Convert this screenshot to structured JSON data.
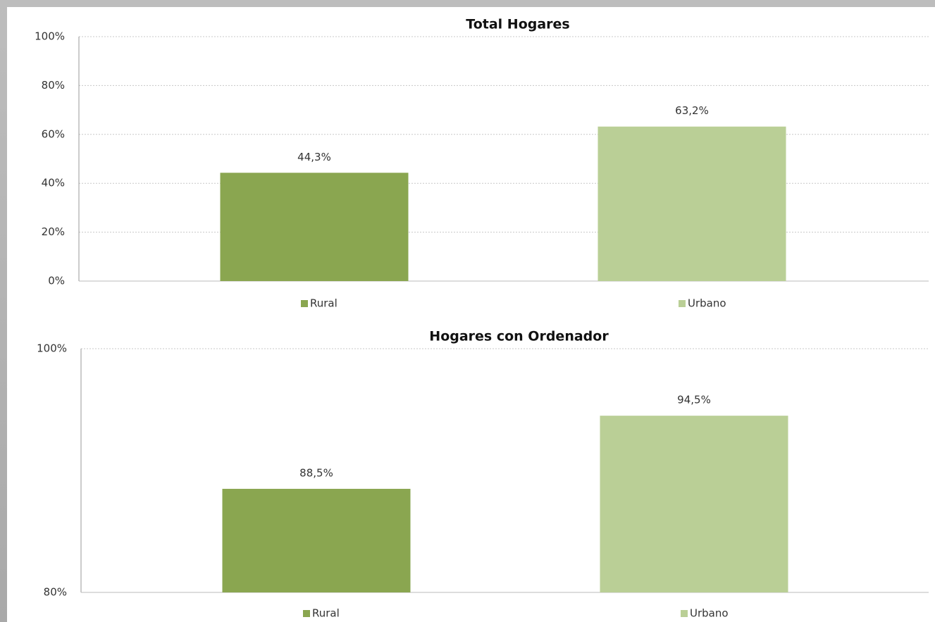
{
  "chart_data": [
    {
      "type": "bar",
      "title": "Total Hogares",
      "categories": [
        "Rural",
        "Urbano"
      ],
      "values": [
        44.3,
        63.2
      ],
      "value_labels": [
        "44,3%",
        "63,2%"
      ],
      "colors": [
        "#8aa650",
        "#bacf96"
      ],
      "ylim": [
        0,
        100
      ],
      "yticks": [
        {
          "value": 0,
          "label": "0%"
        },
        {
          "value": 20,
          "label": "20%"
        },
        {
          "value": 40,
          "label": "40%"
        },
        {
          "value": 60,
          "label": "60%"
        },
        {
          "value": 80,
          "label": "80%"
        },
        {
          "value": 100,
          "label": "100%"
        }
      ],
      "grid": true,
      "legend": "bottom"
    },
    {
      "type": "bar",
      "title": "Hogares con Ordenador",
      "categories": [
        "Rural",
        "Urbano"
      ],
      "values": [
        88.5,
        94.5
      ],
      "value_labels": [
        "88,5%",
        "94,5%"
      ],
      "colors": [
        "#8aa650",
        "#bacf96"
      ],
      "ylim": [
        80,
        100
      ],
      "yticks": [
        {
          "value": 80,
          "label": "80%"
        },
        {
          "value": 100,
          "label": "100%"
        }
      ],
      "grid": true,
      "legend": "bottom"
    }
  ]
}
